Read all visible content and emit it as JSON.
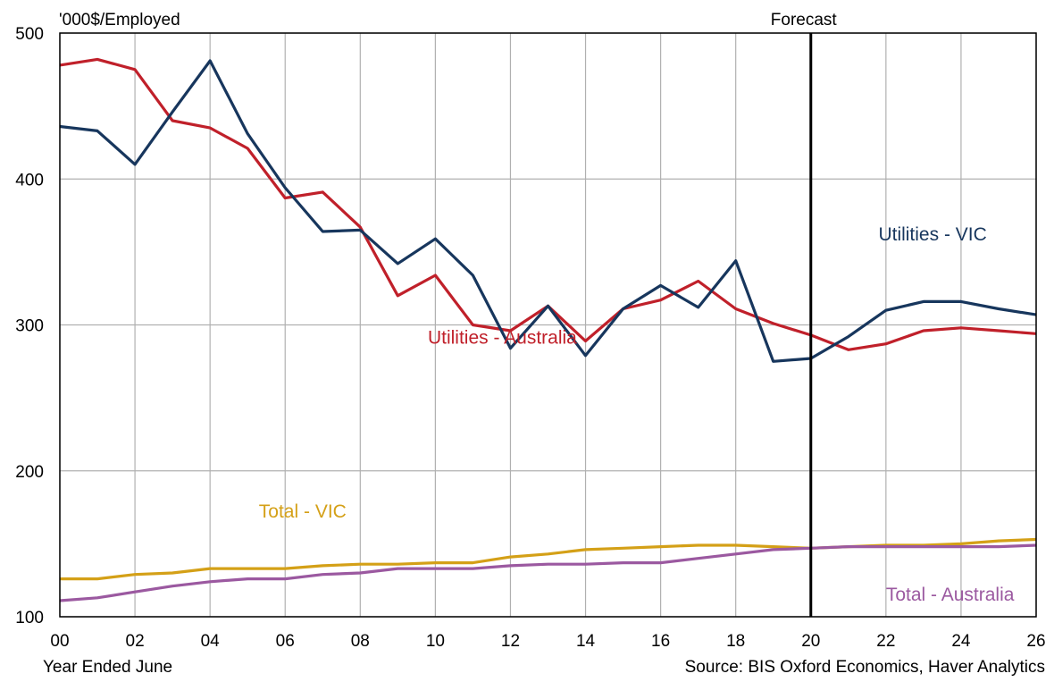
{
  "chart_data": {
    "type": "line",
    "title": "",
    "ylabel": "'000$/Employed",
    "xlabel": "Year Ended June",
    "source": "Source: BIS Oxford Economics, Haver Analytics",
    "forecast_label": "Forecast",
    "forecast_start": 20,
    "xlim": [
      0,
      26
    ],
    "ylim": [
      100,
      500
    ],
    "x": [
      0,
      1,
      2,
      3,
      4,
      5,
      6,
      7,
      8,
      9,
      10,
      11,
      12,
      13,
      14,
      15,
      16,
      17,
      18,
      19,
      20,
      21,
      22,
      23,
      24,
      25,
      26
    ],
    "x_ticks": [
      0,
      2,
      4,
      6,
      8,
      10,
      12,
      14,
      16,
      18,
      20,
      22,
      24,
      26
    ],
    "x_tick_labels": [
      "00",
      "02",
      "04",
      "06",
      "08",
      "10",
      "12",
      "14",
      "16",
      "18",
      "20",
      "22",
      "24",
      "26"
    ],
    "y_ticks": [
      100,
      200,
      300,
      400,
      500
    ],
    "y_tick_labels": [
      "100",
      "200",
      "300",
      "400",
      "500"
    ],
    "grid": "vertical and horizontal",
    "series": [
      {
        "name": "Utilities - Australia",
        "color": "#c0202a",
        "values": [
          478,
          482,
          475,
          440,
          435,
          421,
          387,
          391,
          367,
          320,
          334,
          300,
          296,
          313,
          289,
          311,
          317,
          330,
          311,
          301,
          293,
          283,
          287,
          296,
          298,
          296,
          294
        ]
      },
      {
        "name": "Utilities - VIC",
        "color": "#17365d",
        "values": [
          436,
          433,
          410,
          446,
          481,
          431,
          394,
          364,
          365,
          342,
          359,
          334,
          284,
          313,
          279,
          311,
          327,
          312,
          344,
          275,
          277,
          292,
          310,
          316,
          316,
          311,
          307
        ]
      },
      {
        "name": "Total - VIC",
        "color": "#d4a017",
        "values": [
          126,
          126,
          129,
          130,
          133,
          133,
          133,
          135,
          136,
          136,
          137,
          137,
          141,
          143,
          146,
          147,
          148,
          149,
          149,
          148,
          147,
          148,
          149,
          149,
          150,
          152,
          153
        ]
      },
      {
        "name": "Total - Australia",
        "color": "#9b59a0",
        "values": [
          111,
          113,
          117,
          121,
          124,
          126,
          126,
          129,
          130,
          133,
          133,
          133,
          135,
          136,
          136,
          137,
          137,
          140,
          143,
          146,
          147,
          148,
          148,
          148,
          148,
          148,
          149
        ]
      }
    ],
    "annotations": [
      {
        "text": "Utilities - VIC",
        "series": 1,
        "x": 21.8,
        "y": 358
      },
      {
        "text": "Utilities - Australia",
        "series": 0,
        "x": 9.8,
        "y": 287
      },
      {
        "text": "Total - VIC",
        "series": 2,
        "x": 5.3,
        "y": 168
      },
      {
        "text": "Total - Australia",
        "series": 3,
        "x": 22.0,
        "y": 111
      }
    ]
  }
}
